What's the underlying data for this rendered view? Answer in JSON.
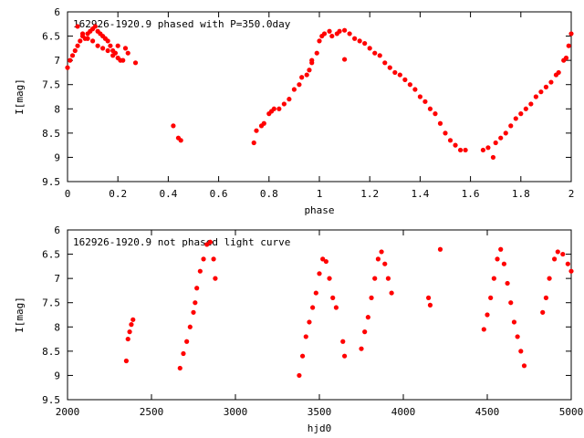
{
  "chart_data": [
    {
      "type": "scatter",
      "title": "162926-1920.9 phased with P=350.0day",
      "xlabel": "phase",
      "ylabel": "I[mag]",
      "xlim": [
        0,
        2
      ],
      "ylim": [
        9.5,
        6
      ],
      "y_inverted": true,
      "grid": false,
      "x_ticks": [
        "0",
        "0.2",
        "0.4",
        "0.6",
        "0.8",
        "1",
        "1.2",
        "1.4",
        "1.6",
        "1.8",
        "2"
      ],
      "y_ticks": [
        "6",
        "6.5",
        "7",
        "7.5",
        "8",
        "8.5",
        "9",
        "9.5"
      ],
      "color": "#ff0000",
      "series": [
        {
          "points": [
            [
              0.0,
              7.15
            ],
            [
              0.01,
              7.0
            ],
            [
              0.02,
              6.9
            ],
            [
              0.03,
              6.8
            ],
            [
              0.04,
              6.7
            ],
            [
              0.05,
              6.6
            ],
            [
              0.06,
              6.5
            ],
            [
              0.07,
              6.55
            ],
            [
              0.08,
              6.45
            ],
            [
              0.09,
              6.4
            ],
            [
              0.1,
              6.35
            ],
            [
              0.11,
              6.3
            ],
            [
              0.12,
              6.4
            ],
            [
              0.13,
              6.45
            ],
            [
              0.14,
              6.5
            ],
            [
              0.15,
              6.55
            ],
            [
              0.16,
              6.6
            ],
            [
              0.17,
              6.7
            ],
            [
              0.18,
              6.8
            ],
            [
              0.19,
              6.85
            ],
            [
              0.2,
              6.95
            ],
            [
              0.21,
              7.0
            ],
            [
              0.22,
              7.0
            ],
            [
              0.04,
              6.3
            ],
            [
              0.06,
              6.45
            ],
            [
              0.08,
              6.55
            ],
            [
              0.1,
              6.6
            ],
            [
              0.12,
              6.7
            ],
            [
              0.14,
              6.75
            ],
            [
              0.16,
              6.8
            ],
            [
              0.18,
              6.9
            ],
            [
              0.2,
              6.7
            ],
            [
              0.23,
              6.75
            ],
            [
              0.24,
              6.85
            ],
            [
              0.27,
              7.05
            ],
            [
              0.42,
              8.35
            ],
            [
              0.44,
              8.6
            ],
            [
              0.45,
              8.65
            ],
            [
              0.74,
              8.7
            ],
            [
              0.75,
              8.45
            ],
            [
              0.77,
              8.35
            ],
            [
              0.78,
              8.3
            ],
            [
              0.8,
              8.1
            ],
            [
              0.81,
              8.05
            ],
            [
              0.82,
              8.0
            ],
            [
              0.84,
              8.0
            ],
            [
              0.86,
              7.9
            ],
            [
              0.88,
              7.8
            ],
            [
              0.9,
              7.6
            ],
            [
              0.92,
              7.5
            ],
            [
              0.93,
              7.35
            ],
            [
              0.95,
              7.3
            ],
            [
              0.96,
              7.2
            ],
            [
              0.97,
              7.05
            ],
            [
              0.99,
              6.85
            ],
            [
              1.0,
              6.6
            ],
            [
              1.01,
              6.5
            ],
            [
              1.02,
              6.45
            ],
            [
              1.04,
              6.4
            ],
            [
              1.05,
              6.5
            ],
            [
              1.07,
              6.45
            ],
            [
              1.08,
              6.4
            ],
            [
              1.1,
              6.38
            ],
            [
              1.12,
              6.45
            ],
            [
              1.14,
              6.55
            ],
            [
              1.16,
              6.6
            ],
            [
              1.18,
              6.65
            ],
            [
              1.2,
              6.75
            ],
            [
              1.22,
              6.85
            ],
            [
              1.24,
              6.9
            ],
            [
              1.26,
              7.05
            ],
            [
              1.28,
              7.15
            ],
            [
              1.3,
              7.25
            ],
            [
              1.32,
              7.3
            ],
            [
              1.34,
              7.4
            ],
            [
              1.36,
              7.5
            ],
            [
              1.38,
              7.6
            ],
            [
              1.4,
              7.75
            ],
            [
              1.42,
              7.85
            ],
            [
              1.44,
              8.0
            ],
            [
              1.46,
              8.1
            ],
            [
              1.48,
              8.3
            ],
            [
              1.5,
              8.5
            ],
            [
              1.52,
              8.65
            ],
            [
              1.54,
              8.75
            ],
            [
              1.56,
              8.85
            ],
            [
              1.58,
              8.85
            ],
            [
              1.65,
              8.85
            ],
            [
              1.67,
              8.8
            ],
            [
              1.69,
              9.0
            ],
            [
              1.7,
              8.7
            ],
            [
              1.72,
              8.6
            ],
            [
              1.74,
              8.5
            ],
            [
              1.76,
              8.35
            ],
            [
              1.78,
              8.2
            ],
            [
              1.8,
              8.1
            ],
            [
              1.82,
              8.0
            ],
            [
              1.84,
              7.9
            ],
            [
              1.86,
              7.75
            ],
            [
              1.88,
              7.65
            ],
            [
              1.9,
              7.55
            ],
            [
              1.92,
              7.45
            ],
            [
              1.94,
              7.3
            ],
            [
              1.95,
              7.25
            ],
            [
              1.97,
              7.0
            ],
            [
              1.98,
              6.95
            ],
            [
              1.99,
              6.7
            ],
            [
              2.0,
              6.45
            ],
            [
              0.97,
              7.0
            ],
            [
              1.1,
              6.98
            ]
          ]
        }
      ]
    },
    {
      "type": "scatter",
      "title": "162926-1920.9 not phased light curve",
      "xlabel": "hjd0",
      "ylabel": "I[mag]",
      "xlim": [
        2000,
        5000
      ],
      "ylim": [
        9.5,
        6
      ],
      "y_inverted": true,
      "grid": false,
      "x_ticks": [
        "2000",
        "2500",
        "3000",
        "3500",
        "4000",
        "4500",
        "5000"
      ],
      "y_ticks": [
        "6",
        "6.5",
        "7",
        "7.5",
        "8",
        "8.5",
        "9",
        "9.5"
      ],
      "color": "#ff0000",
      "series": [
        {
          "points": [
            [
              2350,
              8.7
            ],
            [
              2360,
              8.25
            ],
            [
              2370,
              8.1
            ],
            [
              2380,
              7.95
            ],
            [
              2390,
              7.85
            ],
            [
              2670,
              8.85
            ],
            [
              2690,
              8.55
            ],
            [
              2710,
              8.3
            ],
            [
              2730,
              8.0
            ],
            [
              2750,
              7.7
            ],
            [
              2760,
              7.5
            ],
            [
              2770,
              7.2
            ],
            [
              2790,
              6.85
            ],
            [
              2810,
              6.6
            ],
            [
              2830,
              6.3
            ],
            [
              2850,
              6.25
            ],
            [
              2870,
              6.6
            ],
            [
              2880,
              7.0
            ],
            [
              3380,
              9.0
            ],
            [
              3400,
              8.6
            ],
            [
              3420,
              8.2
            ],
            [
              3440,
              7.9
            ],
            [
              3460,
              7.6
            ],
            [
              3480,
              7.3
            ],
            [
              3500,
              6.9
            ],
            [
              3520,
              6.6
            ],
            [
              3540,
              6.65
            ],
            [
              3560,
              7.0
            ],
            [
              3580,
              7.4
            ],
            [
              3600,
              7.6
            ],
            [
              3640,
              8.3
            ],
            [
              3650,
              8.6
            ],
            [
              3750,
              8.45
            ],
            [
              3770,
              8.1
            ],
            [
              3790,
              7.8
            ],
            [
              3810,
              7.4
            ],
            [
              3830,
              7.0
            ],
            [
              3850,
              6.6
            ],
            [
              3870,
              6.45
            ],
            [
              3890,
              6.7
            ],
            [
              3910,
              7.0
            ],
            [
              3930,
              7.3
            ],
            [
              4150,
              7.4
            ],
            [
              4160,
              7.55
            ],
            [
              4220,
              6.4
            ],
            [
              4480,
              8.05
            ],
            [
              4500,
              7.75
            ],
            [
              4520,
              7.4
            ],
            [
              4540,
              7.0
            ],
            [
              4560,
              6.6
            ],
            [
              4580,
              6.4
            ],
            [
              4600,
              6.7
            ],
            [
              4620,
              7.1
            ],
            [
              4640,
              7.5
            ],
            [
              4660,
              7.9
            ],
            [
              4680,
              8.2
            ],
            [
              4700,
              8.5
            ],
            [
              4720,
              8.8
            ],
            [
              4830,
              7.7
            ],
            [
              4850,
              7.4
            ],
            [
              4870,
              7.0
            ],
            [
              4900,
              6.6
            ],
            [
              4920,
              6.45
            ],
            [
              4950,
              6.5
            ],
            [
              4980,
              6.7
            ],
            [
              5000,
              6.85
            ]
          ]
        }
      ]
    }
  ]
}
